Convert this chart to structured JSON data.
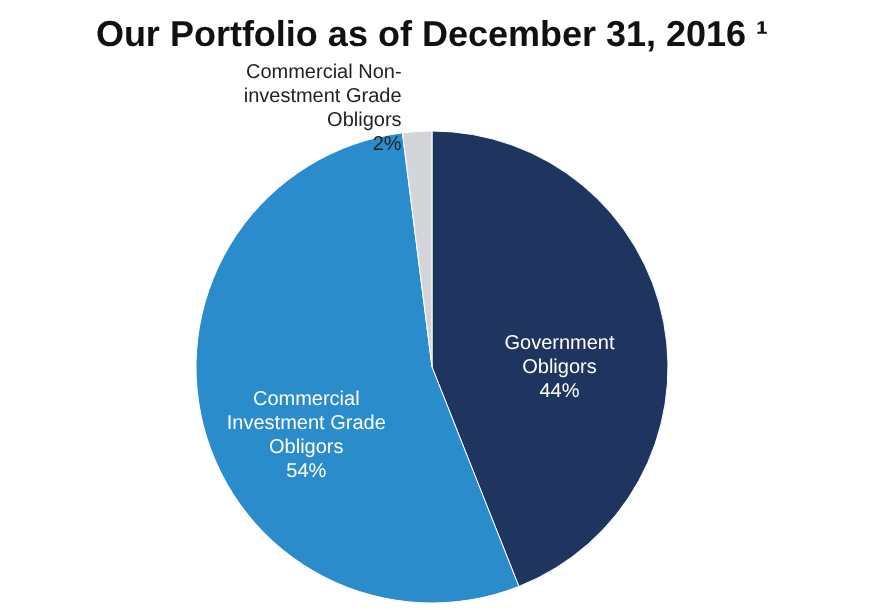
{
  "chart_data": {
    "type": "pie",
    "title": "Our Portfolio as of December 31, 2016 ¹",
    "categories": [
      "Government Obligors",
      "Commercial Investment Grade Obligors",
      "Commercial Non-investment Grade Obligors"
    ],
    "values": [
      44,
      54,
      2
    ],
    "colors": [
      "#1f3560",
      "#2a8ccb",
      "#d3d5d8"
    ],
    "value_labels": [
      "44%",
      "54%",
      "2%"
    ],
    "legend": false
  }
}
